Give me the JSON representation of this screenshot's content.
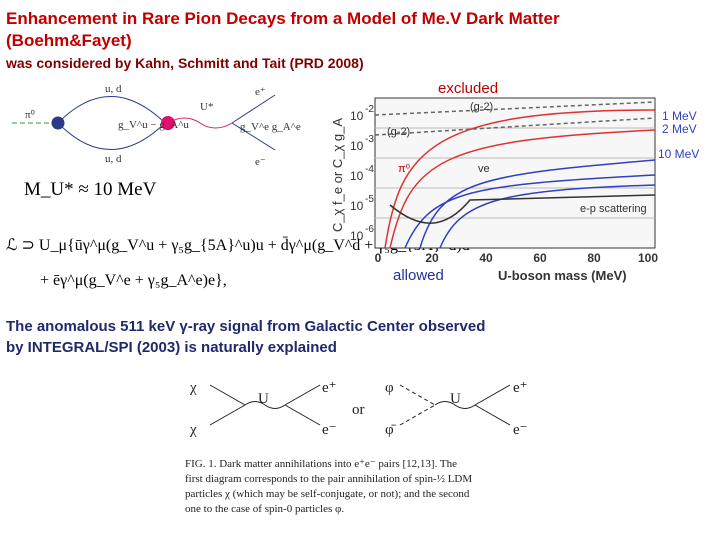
{
  "title": [
    "Enhancement in Rare Pion Decays from a Model of Me.V Dark Matter",
    "(Boehm&Fayet)"
  ],
  "subtitle": "was considered by Kahn, Schmitt and Tait (PRD 2008)",
  "diagram": {
    "labels": [
      "u, d",
      "u, d",
      "π⁰",
      "U*",
      "e⁺",
      "e⁻",
      "g_V^u − g_A^u",
      "g_V^e g_A^e"
    ]
  },
  "mass": "M_U* ≈ 10 MeV",
  "lagrangian": [
    "ℒ ⊃ U_μ{ūγ^μ(g_V^u + γ₅g_{5A}^u)u + d̄γ^μ(g_V^d + γ₅g_{5A}^d)d",
    "+ ēγ^μ(g_V^e + γ₅g_A^e)e},"
  ],
  "plot": {
    "excluded": "excluded",
    "allowed": "allowed",
    "x_label": "U-boson mass (MeV)",
    "y_label": "C_χ f_e or C_χ g_A",
    "x_ticks": [
      "0",
      "20",
      "40",
      "60",
      "80",
      "100"
    ],
    "y_ticks": [
      {
        "base": "10",
        "exp": "-2"
      },
      {
        "base": "10",
        "exp": "-3"
      },
      {
        "base": "10",
        "exp": "-4"
      },
      {
        "base": "10",
        "exp": "-5"
      },
      {
        "base": "10",
        "exp": "-6"
      }
    ],
    "curve_labels": [
      "1 MeV",
      "2 MeV",
      "10 MeV"
    ],
    "annotations": [
      "(g-2)",
      "(g-2)",
      "π⁰",
      "ve",
      "e-p scattering"
    ]
  },
  "body": [
    "The anomalous 511 keV γ-ray signal from Galactic Center observed",
    "by  INTEGRAL/SPI (2003) is naturally explained"
  ],
  "figure": {
    "labels": [
      "χ",
      "χ",
      "U",
      "e⁺",
      "e⁻",
      "or",
      "φ",
      "φ̄",
      "U",
      "e⁺",
      "e⁻"
    ],
    "caption": [
      "FIG. 1.    Dark matter annihilations into e⁺e⁻ pairs [12,13]. The",
      "first diagram corresponds to the pair annihilation of spin-½ LDM",
      "particles χ (which may be self-conjugate, or not); and the second",
      "one to the case of spin-0 particles φ."
    ]
  }
}
